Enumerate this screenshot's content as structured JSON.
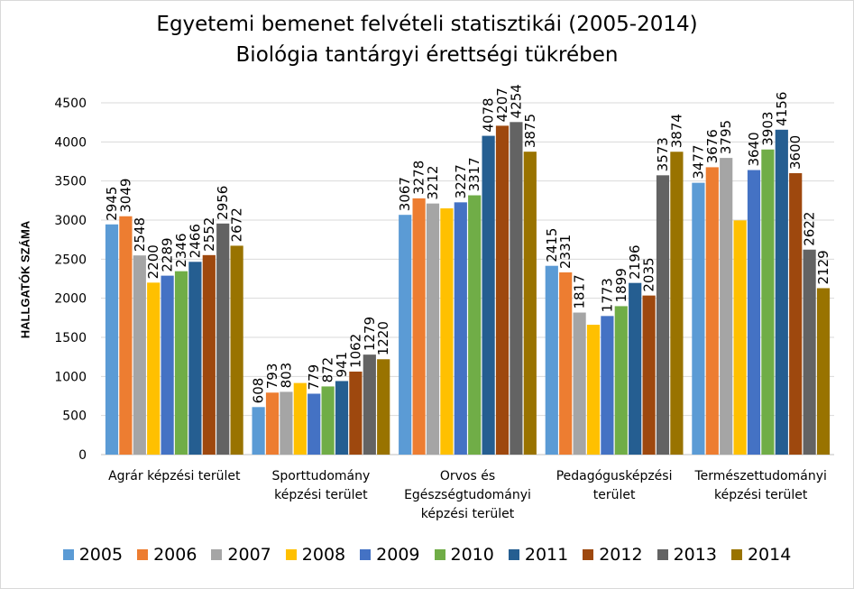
{
  "chart_data": {
    "type": "bar",
    "title": [
      "Egyetemi bemenet felvételi statisztikái (2005-2014)",
      "Biológia tantárgyi érettségi tükrében"
    ],
    "ylabel": "HALLGATÓK SZÁMA",
    "xlabel": "",
    "ylim": [
      0,
      4500
    ],
    "ytick_step": 500,
    "grid": true,
    "legend_position": "bottom",
    "categories": [
      [
        "Agrár képzési terület"
      ],
      [
        "Sporttudomány",
        "képzési terület"
      ],
      [
        "Orvos és",
        "Egészségtudományi",
        "képzési terület"
      ],
      [
        "Pedagógusképzési",
        "terület"
      ],
      [
        "Természettudományi",
        "képzési terület"
      ]
    ],
    "series": [
      {
        "name": "2005",
        "color": "#5b9bd5",
        "values": [
          2945,
          608,
          3067,
          2415,
          3477
        ]
      },
      {
        "name": "2006",
        "color": "#ed7d31",
        "values": [
          3049,
          793,
          3278,
          2331,
          3676
        ]
      },
      {
        "name": "2007",
        "color": "#a5a5a5",
        "values": [
          2548,
          803,
          3212,
          1817,
          3795
        ]
      },
      {
        "name": "2008",
        "color": "#ffc000",
        "values": [
          2200,
          916,
          3150,
          1661,
          2996
        ]
      },
      {
        "name": "2009",
        "color": "#4472c4",
        "values": [
          2289,
          779,
          3227,
          1773,
          3640
        ]
      },
      {
        "name": "2010",
        "color": "#70ad47",
        "values": [
          2346,
          872,
          3317,
          1899,
          3903
        ]
      },
      {
        "name": "2011",
        "color": "#255e91",
        "values": [
          2466,
          941,
          4078,
          2196,
          4156
        ]
      },
      {
        "name": "2012",
        "color": "#9e480e",
        "values": [
          2552,
          1062,
          4207,
          2035,
          3600
        ]
      },
      {
        "name": "2013",
        "color": "#636363",
        "values": [
          2956,
          1279,
          4254,
          3573,
          2622
        ]
      },
      {
        "name": "2014",
        "color": "#997300",
        "values": [
          2672,
          1220,
          3875,
          3874,
          2129
        ]
      }
    ],
    "data_labels": [
      [
        "2945",
        "608",
        "3067",
        "2415",
        "3477"
      ],
      [
        "3049",
        "793",
        "3278",
        "2331",
        "3676"
      ],
      [
        "2548",
        "803",
        "3212",
        "1817",
        "3795"
      ],
      [
        "2200",
        "",
        "",
        "",
        ""
      ],
      [
        "2289",
        "779",
        "3227",
        "1773",
        "3640"
      ],
      [
        "2346",
        "872",
        "3317",
        "1899",
        "3903"
      ],
      [
        "2466",
        "941",
        "4078",
        "2196",
        "4156"
      ],
      [
        "2552",
        "1062",
        "4207",
        "2035",
        "3600"
      ],
      [
        "2956",
        "1279",
        "4254",
        "3573",
        "2622"
      ],
      [
        "2672",
        "1220",
        "3875",
        "3874",
        "2129"
      ]
    ],
    "yticks": [
      "0",
      "500",
      "1000",
      "1500",
      "2000",
      "2500",
      "3000",
      "3500",
      "4000",
      "4500"
    ]
  }
}
